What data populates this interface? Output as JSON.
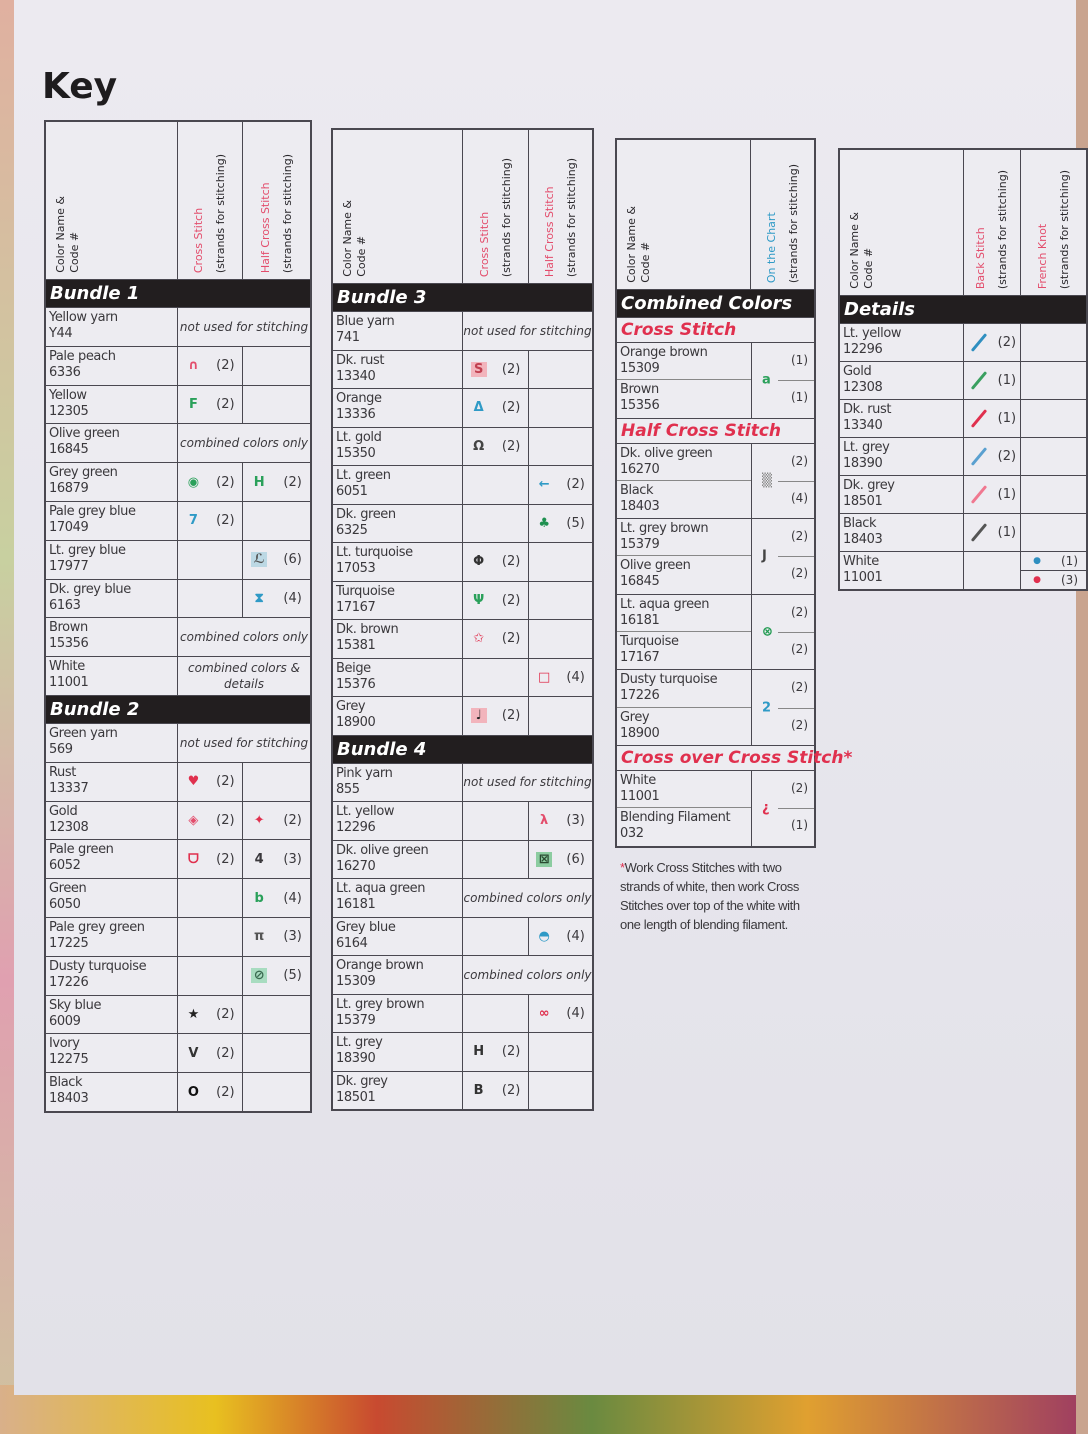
{
  "title": "Key",
  "header_labels": {
    "color_name": "Color Name &",
    "code": "Code #",
    "cross_stitch": "Cross Stitch",
    "half_cross_stitch": "Half Cross Stitch",
    "strands": "(strands for stitching)",
    "on_the_chart": "On the Chart",
    "back_stitch": "Back Stitch",
    "french_knot": "French Knot"
  },
  "colors": {
    "pink": "#e34d6c",
    "red": "#e0304e",
    "blue": "#2f9ac6",
    "green": "#2aa05a",
    "black_bar": "#221e1f"
  },
  "table1": {
    "sections": [
      {
        "title": "Bundle 1",
        "rows": [
          {
            "name": "Yellow yarn",
            "code": "Y44",
            "note": "not used for stitching"
          },
          {
            "name": "Pale peach",
            "code": "6336",
            "cs": {
              "sym": "∩",
              "strands": "(2)",
              "color": "#e34d6c"
            }
          },
          {
            "name": "Yellow",
            "code": "12305",
            "cs": {
              "sym": "F",
              "strands": "(2)",
              "color": "#2aa05a"
            }
          },
          {
            "name": "Olive green",
            "code": "16845",
            "note": "combined colors only"
          },
          {
            "name": "Grey green",
            "code": "16879",
            "cs": {
              "sym": "◉",
              "strands": "(2)",
              "color": "#2aa05a"
            },
            "hcs": {
              "sym": "H",
              "strands": "(2)",
              "color": "#2aa05a"
            }
          },
          {
            "name": "Pale grey blue",
            "code": "17049",
            "cs": {
              "sym": "7",
              "strands": "(2)",
              "color": "#2f9ac6"
            }
          },
          {
            "name": "Lt. grey blue",
            "code": "17977",
            "hcs": {
              "sym": "ℒ",
              "strands": "(6)",
              "color": "#555",
              "bg": "#bcd8e4"
            }
          },
          {
            "name": "Dk. grey blue",
            "code": "6163",
            "hcs": {
              "sym": "⧗",
              "strands": "(4)",
              "color": "#2f9ac6"
            }
          },
          {
            "name": "Brown",
            "code": "15356",
            "note": "combined colors only"
          },
          {
            "name": "White",
            "code": "11001",
            "note": "combined colors & details"
          }
        ]
      },
      {
        "title": "Bundle 2",
        "rows": [
          {
            "name": "Green yarn",
            "code": "569",
            "note": "not used for stitching"
          },
          {
            "name": "Rust",
            "code": "13337",
            "cs": {
              "sym": "♥",
              "strands": "(2)",
              "color": "#e0304e"
            }
          },
          {
            "name": "Gold",
            "code": "12308",
            "cs": {
              "sym": "◈",
              "strands": "(2)",
              "color": "#e34d6c"
            },
            "hcs": {
              "sym": "✦",
              "strands": "(2)",
              "color": "#e0304e"
            }
          },
          {
            "name": "Pale green",
            "code": "6052",
            "cs": {
              "sym": "ᗜ",
              "strands": "(2)",
              "color": "#e0304e"
            },
            "hcs": {
              "sym": "4",
              "strands": "(3)",
              "color": "#3a383c"
            }
          },
          {
            "name": "Green",
            "code": "6050",
            "hcs": {
              "sym": "b",
              "strands": "(4)",
              "color": "#2aa05a"
            }
          },
          {
            "name": "Pale grey green",
            "code": "17225",
            "hcs": {
              "sym": "π",
              "strands": "(3)",
              "color": "#555"
            }
          },
          {
            "name": "Dusty turquoise",
            "code": "17226",
            "hcs": {
              "sym": "⊘",
              "strands": "(5)",
              "color": "#3a6a50",
              "bg": "#a8dcc0"
            }
          },
          {
            "name": "Sky blue",
            "code": "6009",
            "cs": {
              "sym": "★",
              "strands": "(2)",
              "color": "#222"
            }
          },
          {
            "name": "Ivory",
            "code": "12275",
            "cs": {
              "sym": "V",
              "strands": "(2)",
              "color": "#333"
            }
          },
          {
            "name": "Black",
            "code": "18403",
            "cs": {
              "sym": "O",
              "strands": "(2)",
              "color": "#111"
            }
          }
        ]
      }
    ]
  },
  "table2": {
    "sections": [
      {
        "title": "Bundle 3",
        "rows": [
          {
            "name": "Blue yarn",
            "code": "741",
            "note": "not used for stitching"
          },
          {
            "name": "Dk. rust",
            "code": "13340",
            "cs": {
              "sym": "S",
              "strands": "(2)",
              "color": "#c04050",
              "bg": "#f2b4bc"
            }
          },
          {
            "name": "Orange",
            "code": "13336",
            "cs": {
              "sym": "Δ",
              "strands": "(2)",
              "color": "#2f9ac6"
            }
          },
          {
            "name": "Lt. gold",
            "code": "15350",
            "cs": {
              "sym": "Ω",
              "strands": "(2)",
              "color": "#444"
            }
          },
          {
            "name": "Lt. green",
            "code": "6051",
            "hcs": {
              "sym": "←",
              "strands": "(2)",
              "color": "#2f9ac6"
            }
          },
          {
            "name": "Dk. green",
            "code": "6325",
            "hcs": {
              "sym": "♣",
              "strands": "(5)",
              "color": "#1f9050"
            }
          },
          {
            "name": "Lt. turquoise",
            "code": "17053",
            "cs": {
              "sym": "Φ",
              "strands": "(2)",
              "color": "#333"
            }
          },
          {
            "name": "Turquoise",
            "code": "17167",
            "cs": {
              "sym": "Ψ",
              "strands": "(2)",
              "color": "#2aa05a"
            }
          },
          {
            "name": "Dk. brown",
            "code": "15381",
            "cs": {
              "sym": "✩",
              "strands": "(2)",
              "color": "#e0304e"
            }
          },
          {
            "name": "Beige",
            "code": "15376",
            "hcs": {
              "sym": "□",
              "strands": "(4)",
              "color": "#e0304e"
            }
          },
          {
            "name": "Grey",
            "code": "18900",
            "cs": {
              "sym": "♩",
              "strands": "(2)",
              "color": "#222",
              "bg": "#f2b4bc"
            }
          }
        ]
      },
      {
        "title": "Bundle 4",
        "rows": [
          {
            "name": "Pink yarn",
            "code": "855",
            "note": "not used for stitching"
          },
          {
            "name": "Lt. yellow",
            "code": "12296",
            "hcs": {
              "sym": "λ",
              "strands": "(3)",
              "color": "#e34d6c"
            }
          },
          {
            "name": "Dk. olive green",
            "code": "16270",
            "hcs": {
              "sym": "⊠",
              "strands": "(6)",
              "color": "#2a4a30",
              "bg": "#8ccca0"
            }
          },
          {
            "name": "Lt. aqua green",
            "code": "16181",
            "note": "combined colors only"
          },
          {
            "name": "Grey blue",
            "code": "6164",
            "hcs": {
              "sym": "◓",
              "strands": "(4)",
              "color": "#2f9ac6"
            }
          },
          {
            "name": "Orange brown",
            "code": "15309",
            "note": "combined colors only"
          },
          {
            "name": "Lt. grey brown",
            "code": "15379",
            "hcs": {
              "sym": "∞",
              "strands": "(4)",
              "color": "#e0304e"
            }
          },
          {
            "name": "Lt. grey",
            "code": "18390",
            "cs": {
              "sym": "H",
              "strands": "(2)",
              "color": "#333"
            }
          },
          {
            "name": "Dk. grey",
            "code": "18501",
            "cs": {
              "sym": "B",
              "strands": "(2)",
              "color": "#333"
            }
          }
        ]
      }
    ]
  },
  "table3": {
    "title": "Combined Colors",
    "sections": [
      {
        "title": "Cross Stitch",
        "groups": [
          {
            "sym": "a",
            "color": "#2aa05a",
            "items": [
              {
                "name": "Orange brown",
                "code": "15309",
                "strands": "(1)"
              },
              {
                "name": "Brown",
                "code": "15356",
                "strands": "(1)"
              }
            ]
          }
        ]
      },
      {
        "title": "Half Cross Stitch",
        "groups": [
          {
            "sym": "▒",
            "color": "#888",
            "items": [
              {
                "name": "Dk. olive green",
                "code": "16270",
                "strands": "(2)"
              },
              {
                "name": "Black",
                "code": "18403",
                "strands": "(4)"
              }
            ]
          },
          {
            "sym": "J",
            "color": "#444",
            "items": [
              {
                "name": "Lt. grey brown",
                "code": "15379",
                "strands": "(2)"
              },
              {
                "name": "Olive green",
                "code": "16845",
                "strands": "(2)"
              }
            ]
          },
          {
            "sym": "⊗",
            "color": "#1f9a50",
            "items": [
              {
                "name": "Lt. aqua green",
                "code": "16181",
                "strands": "(2)"
              },
              {
                "name": "Turquoise",
                "code": "17167",
                "strands": "(2)"
              }
            ]
          },
          {
            "sym": "2",
            "color": "#2f9ac6",
            "items": [
              {
                "name": "Dusty turquoise",
                "code": "17226",
                "strands": "(2)"
              },
              {
                "name": "Grey",
                "code": "18900",
                "strands": "(2)"
              }
            ]
          }
        ]
      },
      {
        "title": "Cross over Cross Stitch*",
        "groups": [
          {
            "sym": "¿",
            "color": "#e0304e",
            "items": [
              {
                "name": "White",
                "code": "11001",
                "strands": "(2)"
              },
              {
                "name": "Blending Filament",
                "code": "032",
                "strands": "(1)"
              }
            ]
          }
        ]
      }
    ],
    "footnote_star": "*",
    "footnote": "Work Cross Stitches with two strands of white, then work Cross Stitches over top of the white with one length of blending filament."
  },
  "table4": {
    "title": "Details",
    "rows": [
      {
        "name": "Lt. yellow",
        "code": "12296",
        "bs": {
          "color": "#2f8fc0",
          "strands": "(2)"
        }
      },
      {
        "name": "Gold",
        "code": "12308",
        "bs": {
          "color": "#3aa060",
          "strands": "(1)"
        }
      },
      {
        "name": "Dk. rust",
        "code": "13340",
        "bs": {
          "color": "#e0304e",
          "strands": "(1)"
        }
      },
      {
        "name": "Lt. grey",
        "code": "18390",
        "bs": {
          "color": "#5aa0d0",
          "strands": "(2)"
        }
      },
      {
        "name": "Dk. grey",
        "code": "18501",
        "bs": {
          "color": "#f07890",
          "strands": "(1)"
        }
      },
      {
        "name": "Black",
        "code": "18403",
        "bs": {
          "color": "#555",
          "strands": "(1)"
        }
      },
      {
        "name": "White",
        "code": "11001",
        "fk": [
          {
            "sym": "●",
            "color": "#2f8fc0",
            "strands": "(1)"
          },
          {
            "sym": "●",
            "color": "#e0304e",
            "strands": "(3)"
          }
        ]
      }
    ]
  }
}
